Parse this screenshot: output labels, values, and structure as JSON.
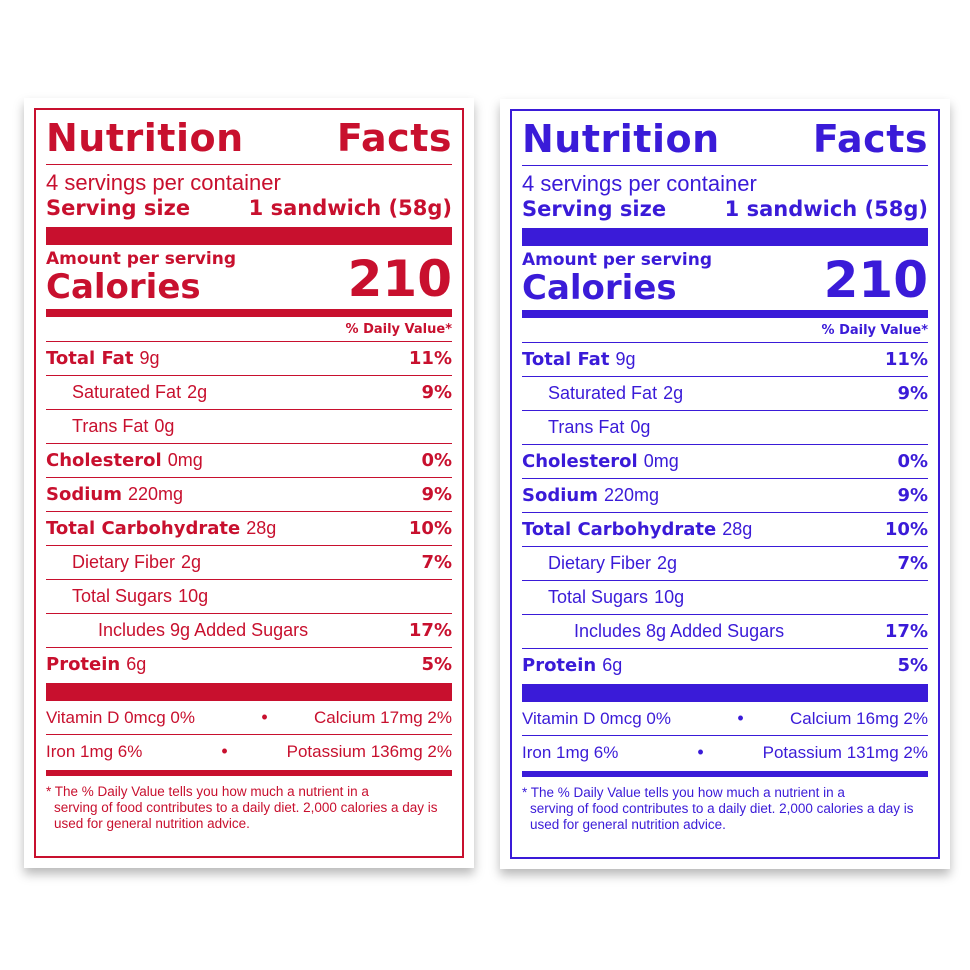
{
  "labels": [
    {
      "color": "#c8102e",
      "title": {
        "left": "Nutrition",
        "right": "Facts"
      },
      "servings": "4 servings per container",
      "serving_size": {
        "label": "Serving size",
        "value": "1 sandwich (58g)"
      },
      "amount_per_serving": "Amount per serving",
      "calories_label": "Calories",
      "calories_value": "210",
      "dv_header": "% Daily Value*",
      "nutrients": [
        {
          "name": "Total Fat",
          "amount": "9g",
          "dv": "11%",
          "level": 0
        },
        {
          "name": "Saturated Fat",
          "amount": "2g",
          "dv": "9%",
          "level": 1
        },
        {
          "name": "Trans Fat",
          "amount": "0g",
          "dv": "",
          "level": 1
        },
        {
          "name": "Cholesterol",
          "amount": "0mg",
          "dv": "0%",
          "level": 0
        },
        {
          "name": "Sodium",
          "amount": "220mg",
          "dv": "9%",
          "level": 0
        },
        {
          "name": "Total Carbohydrate",
          "amount": "28g",
          "dv": "10%",
          "level": 0
        },
        {
          "name": "Dietary Fiber",
          "amount": "2g",
          "dv": "7%",
          "level": 1
        },
        {
          "name": "Total Sugars",
          "amount": "10g",
          "dv": "",
          "level": 1
        },
        {
          "name": "Includes 9g Added Sugars",
          "amount": "",
          "dv": "17%",
          "level": 2
        },
        {
          "name": "Protein",
          "amount": "6g",
          "dv": "5%",
          "level": 0
        }
      ],
      "vitamins": [
        {
          "left": "Vitamin D 0mcg 0%",
          "right": "Calcium 17mg 2%"
        },
        {
          "left": "Iron 1mg 6%",
          "right": "Potassium 136mg 2%"
        }
      ],
      "bullet": "•",
      "footnote_first": "* The % Daily Value tells you how much a nutrient in a",
      "footnote_rest": "serving of food contributes to a daily diet. 2,000 calories a day is used for general nutrition advice."
    },
    {
      "color": "#3a1bd8",
      "title": {
        "left": "Nutrition",
        "right": "Facts"
      },
      "servings": "4 servings per container",
      "serving_size": {
        "label": "Serving size",
        "value": "1 sandwich (58g)"
      },
      "amount_per_serving": "Amount per serving",
      "calories_label": "Calories",
      "calories_value": "210",
      "dv_header": "% Daily Value*",
      "nutrients": [
        {
          "name": "Total Fat",
          "amount": "9g",
          "dv": "11%",
          "level": 0
        },
        {
          "name": "Saturated Fat",
          "amount": "2g",
          "dv": "9%",
          "level": 1
        },
        {
          "name": "Trans Fat",
          "amount": "0g",
          "dv": "",
          "level": 1
        },
        {
          "name": "Cholesterol",
          "amount": "0mg",
          "dv": "0%",
          "level": 0
        },
        {
          "name": "Sodium",
          "amount": "220mg",
          "dv": "9%",
          "level": 0
        },
        {
          "name": "Total Carbohydrate",
          "amount": "28g",
          "dv": "10%",
          "level": 0
        },
        {
          "name": "Dietary Fiber",
          "amount": "2g",
          "dv": "7%",
          "level": 1
        },
        {
          "name": "Total Sugars",
          "amount": "10g",
          "dv": "",
          "level": 1
        },
        {
          "name": "Includes 8g Added Sugars",
          "amount": "",
          "dv": "17%",
          "level": 2
        },
        {
          "name": "Protein",
          "amount": "6g",
          "dv": "5%",
          "level": 0
        }
      ],
      "vitamins": [
        {
          "left": "Vitamin D 0mcg 0%",
          "right": "Calcium 16mg 2%"
        },
        {
          "left": "Iron 1mg 6%",
          "right": "Potassium 131mg 2%"
        }
      ],
      "bullet": "•",
      "footnote_first": "* The % Daily Value tells you how much a nutrient in a",
      "footnote_rest": "serving of food contributes to a daily diet. 2,000 calories a day is used for general nutrition advice."
    }
  ]
}
